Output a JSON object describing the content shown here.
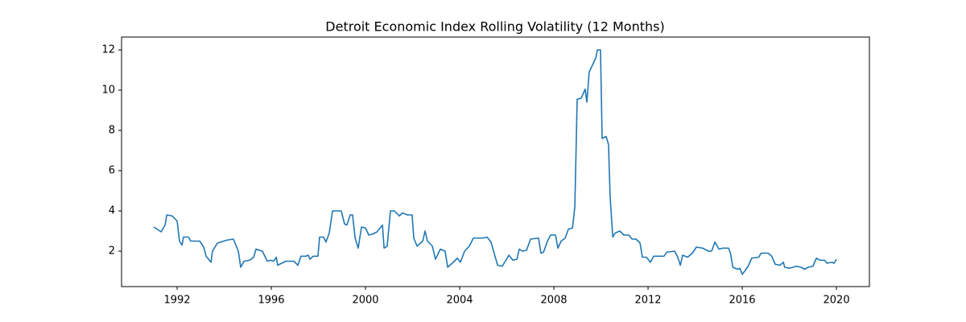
{
  "chart_data": {
    "type": "line",
    "title": "Detroit Economic Index Rolling Volatility (12 Months)",
    "color": "#1f77b4",
    "x": [
      1991.01,
      1991.32,
      1991.49,
      1991.56,
      1991.79,
      1992.0,
      1992.1,
      1992.21,
      1992.27,
      1992.48,
      1992.58,
      1992.96,
      1993.13,
      1993.23,
      1993.44,
      1993.5,
      1993.71,
      1993.98,
      1994.12,
      1994.39,
      1994.6,
      1994.7,
      1994.84,
      1995.08,
      1995.25,
      1995.35,
      1995.62,
      1995.83,
      1995.97,
      1996.1,
      1996.21,
      1996.27,
      1996.44,
      1996.62,
      1996.96,
      1997.13,
      1997.26,
      1997.47,
      1997.57,
      1997.64,
      1997.78,
      1997.98,
      1998.05,
      1998.22,
      1998.32,
      1998.46,
      1998.6,
      1998.97,
      1999.11,
      1999.21,
      1999.35,
      1999.45,
      1999.56,
      1999.69,
      1999.83,
      2000.0,
      2000.14,
      2000.31,
      2000.48,
      2000.62,
      2000.72,
      2000.79,
      2000.92,
      2001.06,
      2001.23,
      2001.44,
      2001.57,
      2001.78,
      2001.98,
      2002.05,
      2002.19,
      2002.43,
      2002.53,
      2002.63,
      2002.84,
      2002.97,
      2003.18,
      2003.38,
      2003.49,
      2003.73,
      2003.9,
      2004.03,
      2004.21,
      2004.41,
      2004.58,
      2004.99,
      2005.16,
      2005.33,
      2005.5,
      2005.61,
      2005.81,
      2006.09,
      2006.26,
      2006.43,
      2006.53,
      2006.67,
      2006.84,
      2007.01,
      2007.35,
      2007.45,
      2007.56,
      2007.73,
      2007.86,
      2008.07,
      2008.17,
      2008.31,
      2008.48,
      2008.62,
      2008.79,
      2008.89,
      2008.99,
      2009.16,
      2009.33,
      2009.4,
      2009.5,
      2009.78,
      2009.85,
      2009.98,
      2010.05,
      2010.22,
      2010.32,
      2010.39,
      2010.5,
      2010.6,
      2010.8,
      2010.97,
      2011.18,
      2011.32,
      2011.49,
      2011.66,
      2011.76,
      2011.93,
      2012.1,
      2012.24,
      2012.68,
      2012.79,
      2013.13,
      2013.26,
      2013.37,
      2013.47,
      2013.68,
      2013.88,
      2014.05,
      2014.32,
      2014.56,
      2014.7,
      2014.84,
      2015.01,
      2015.18,
      2015.42,
      2015.5,
      2015.6,
      2015.8,
      2015.9,
      2016.0,
      2016.1,
      2016.25,
      2016.4,
      2016.7,
      2016.8,
      2017.1,
      2017.25,
      2017.4,
      2017.6,
      2017.75,
      2017.8,
      2018.0,
      2018.3,
      2018.5,
      2018.65,
      2018.8,
      2019.0,
      2019.15,
      2019.3,
      2019.5,
      2019.6,
      2019.8,
      2019.9,
      2020.0
    ],
    "values": [
      3.2,
      2.96,
      3.3,
      3.8,
      3.75,
      3.5,
      2.5,
      2.3,
      2.7,
      2.7,
      2.5,
      2.5,
      2.2,
      1.75,
      1.45,
      2.0,
      2.4,
      2.5,
      2.55,
      2.6,
      2.0,
      1.2,
      1.5,
      1.55,
      1.7,
      2.1,
      2.0,
      1.5,
      1.55,
      1.5,
      1.7,
      1.3,
      1.4,
      1.5,
      1.5,
      1.3,
      1.75,
      1.75,
      1.8,
      1.6,
      1.75,
      1.75,
      2.7,
      2.7,
      2.45,
      2.9,
      4.0,
      4.0,
      3.35,
      3.3,
      3.8,
      3.8,
      2.65,
      2.15,
      3.2,
      3.15,
      2.8,
      2.85,
      2.95,
      3.15,
      3.3,
      2.15,
      2.25,
      4.0,
      4.0,
      3.75,
      3.9,
      3.8,
      3.8,
      2.65,
      2.25,
      2.5,
      3.0,
      2.5,
      2.25,
      1.6,
      2.1,
      2.0,
      1.2,
      1.45,
      1.65,
      1.45,
      2.0,
      2.25,
      2.65,
      2.65,
      2.7,
      2.45,
      1.75,
      1.3,
      1.25,
      1.8,
      1.55,
      1.6,
      2.1,
      2.0,
      2.05,
      2.6,
      2.65,
      1.9,
      1.95,
      2.5,
      2.8,
      2.8,
      2.15,
      2.5,
      2.65,
      3.1,
      3.15,
      4.2,
      9.55,
      9.6,
      10.05,
      9.4,
      10.9,
      11.6,
      12.0,
      12.0,
      7.6,
      7.7,
      7.3,
      4.7,
      2.7,
      2.9,
      3.0,
      2.8,
      2.8,
      2.6,
      2.6,
      2.4,
      1.7,
      1.7,
      1.45,
      1.75,
      1.75,
      1.95,
      2.0,
      1.7,
      1.3,
      1.8,
      1.7,
      1.9,
      2.2,
      2.15,
      2.0,
      2.0,
      2.45,
      2.1,
      2.15,
      2.15,
      1.9,
      1.2,
      1.1,
      1.15,
      0.85,
      1.0,
      1.25,
      1.65,
      1.7,
      1.9,
      1.9,
      1.75,
      1.35,
      1.3,
      1.45,
      1.2,
      1.15,
      1.25,
      1.2,
      1.1,
      1.2,
      1.25,
      1.65,
      1.55,
      1.55,
      1.4,
      1.45,
      1.4,
      1.6
    ],
    "xlim": [
      1989.64,
      2021.4
    ],
    "xticks": [
      1992,
      1996,
      2000,
      2004,
      2008,
      2012,
      2016,
      2020
    ],
    "ylim": [
      0.24,
      12.64
    ],
    "yticks": [
      2,
      4,
      6,
      8,
      10,
      12
    ],
    "grid": false
  }
}
